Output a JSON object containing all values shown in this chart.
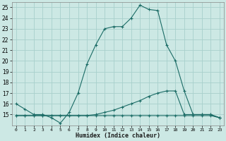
{
  "xlabel": "Humidex (Indice chaleur)",
  "bg_color": "#cce8e4",
  "grid_color": "#a8d0cc",
  "line_color": "#1a6b65",
  "xlim": [
    -0.5,
    23.5
  ],
  "ylim": [
    14,
    25.5
  ],
  "yticks": [
    15,
    16,
    17,
    18,
    19,
    20,
    21,
    22,
    23,
    24,
    25
  ],
  "xticks": [
    0,
    1,
    2,
    3,
    4,
    5,
    6,
    7,
    8,
    9,
    10,
    11,
    12,
    13,
    14,
    15,
    16,
    17,
    18,
    19,
    20,
    21,
    22,
    23
  ],
  "curve1_x": [
    0,
    1,
    2,
    3,
    4,
    5,
    6,
    7,
    8,
    9,
    10,
    11,
    12,
    13,
    14,
    15,
    16,
    17,
    18,
    19,
    20,
    21,
    22,
    23
  ],
  "curve1_y": [
    16.0,
    15.5,
    15.0,
    15.0,
    14.7,
    14.2,
    15.2,
    17.0,
    19.7,
    21.5,
    23.0,
    23.2,
    23.2,
    24.0,
    25.2,
    24.8,
    24.7,
    21.5,
    20.0,
    17.2,
    15.0,
    15.0,
    15.0,
    14.7
  ],
  "curve2_x": [
    0,
    1,
    2,
    3,
    4,
    5,
    6,
    7,
    8,
    9,
    10,
    11,
    12,
    13,
    14,
    15,
    16,
    17,
    18,
    19,
    20,
    21,
    22,
    23
  ],
  "curve2_y": [
    14.9,
    14.9,
    14.9,
    14.9,
    14.9,
    14.9,
    14.9,
    14.9,
    14.9,
    15.0,
    15.2,
    15.4,
    15.7,
    16.0,
    16.3,
    16.7,
    17.0,
    17.2,
    17.2,
    15.0,
    15.0,
    15.0,
    15.0,
    14.7
  ],
  "curve3_x": [
    0,
    1,
    2,
    3,
    4,
    5,
    6,
    7,
    8,
    9,
    10,
    11,
    12,
    13,
    14,
    15,
    16,
    17,
    18,
    19,
    20,
    21,
    22,
    23
  ],
  "curve3_y": [
    14.9,
    14.9,
    14.9,
    14.9,
    14.9,
    14.9,
    14.9,
    14.9,
    14.9,
    14.9,
    14.9,
    14.9,
    14.9,
    14.9,
    14.9,
    14.9,
    14.9,
    14.9,
    14.9,
    14.9,
    14.9,
    14.9,
    14.9,
    14.7
  ]
}
